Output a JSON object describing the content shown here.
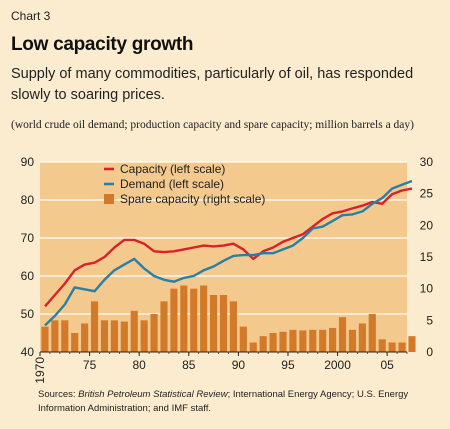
{
  "chart_label": "Chart 3",
  "title": "Low capacity growth",
  "subtitle": "Supply of many commodities, particularly of oil, has responded slowly to soaring prices.",
  "units": "(world crude oil demand; production capacity and spare capacity; million barrels a day)",
  "sources": {
    "lead": "Sources: ",
    "bp": "British Petroleum Statistical Review",
    "rest": "; International Energy Agency; U.S. Energy Information Administration; and IMF staff."
  },
  "colors": {
    "background": "#fbeccf",
    "plot_background": "#f3c98d",
    "capacity": "#d8222a",
    "demand": "#2a7fa6",
    "spare": "#d27a2a"
  },
  "chart_data": {
    "type": "bar+line",
    "x_tick_labels": [
      "1970",
      "75",
      "80",
      "85",
      "90",
      "95",
      "2000",
      "05"
    ],
    "x_ticks": [
      1970,
      1975,
      1980,
      1985,
      1990,
      1995,
      2000,
      2005
    ],
    "x_range": [
      1970,
      2007
    ],
    "y_left": {
      "range": [
        40,
        90
      ],
      "ticks": [
        40,
        50,
        60,
        70,
        80,
        90
      ]
    },
    "y_right": {
      "range": [
        0,
        30
      ],
      "ticks": [
        0,
        5,
        10,
        15,
        20,
        25,
        30
      ]
    },
    "legend_position": "top-left",
    "series": [
      {
        "name": "Capacity (left scale)",
        "kind": "line",
        "axis": "left",
        "color": "#d8222a",
        "x": [
          1970,
          1971,
          1972,
          1973,
          1974,
          1975,
          1976,
          1977,
          1978,
          1979,
          1980,
          1981,
          1982,
          1983,
          1984,
          1985,
          1986,
          1987,
          1988,
          1989,
          1990,
          1991,
          1992,
          1993,
          1994,
          1995,
          1996,
          1997,
          1998,
          1999,
          2000,
          2001,
          2002,
          2003,
          2004,
          2005,
          2006,
          2007
        ],
        "y": [
          52,
          55,
          58,
          61.5,
          63,
          63.5,
          65,
          67.5,
          69.5,
          69.5,
          68.5,
          66.5,
          66.3,
          66.5,
          67,
          67.5,
          68,
          67.8,
          68,
          68.5,
          67,
          64.5,
          66.5,
          67.5,
          69,
          70,
          71,
          73,
          75,
          76.5,
          77,
          77.8,
          78.5,
          79.5,
          79,
          81.5,
          82.5,
          83
        ]
      },
      {
        "name": "Demand (left scale)",
        "kind": "line",
        "axis": "left",
        "color": "#2a7fa6",
        "x": [
          1970,
          1971,
          1972,
          1973,
          1974,
          1975,
          1976,
          1977,
          1978,
          1979,
          1980,
          1981,
          1982,
          1983,
          1984,
          1985,
          1986,
          1987,
          1988,
          1989,
          1990,
          1991,
          1992,
          1993,
          1994,
          1995,
          1996,
          1997,
          1998,
          1999,
          2000,
          2001,
          2002,
          2003,
          2004,
          2005,
          2006,
          2007
        ],
        "y": [
          47,
          49.5,
          52.5,
          57,
          56.5,
          56,
          59,
          61.5,
          63,
          64.5,
          62,
          60,
          59,
          58.5,
          59.5,
          60,
          61.5,
          62.5,
          64,
          65.3,
          65.5,
          65.5,
          66,
          66,
          67,
          68,
          70,
          72.5,
          73,
          74.5,
          76,
          76.2,
          77,
          79,
          80.5,
          83,
          84,
          85
        ]
      },
      {
        "name": "Spare capacity (right scale)",
        "kind": "bar",
        "axis": "right",
        "color": "#d27a2a",
        "x": [
          1970,
          1971,
          1972,
          1973,
          1974,
          1975,
          1976,
          1977,
          1978,
          1979,
          1980,
          1981,
          1982,
          1983,
          1984,
          1985,
          1986,
          1987,
          1988,
          1989,
          1990,
          1991,
          1992,
          1993,
          1994,
          1995,
          1996,
          1997,
          1998,
          1999,
          2000,
          2001,
          2002,
          2003,
          2004,
          2005,
          2006,
          2007
        ],
        "y": [
          4,
          5,
          5,
          3,
          4.5,
          8,
          5,
          5,
          4.8,
          6.5,
          5,
          6,
          8,
          10,
          10.5,
          10,
          10.5,
          9,
          9,
          8,
          4,
          1.5,
          2.5,
          3,
          3.2,
          3.5,
          3.4,
          3.5,
          3.5,
          3.8,
          5.5,
          3.5,
          4.5,
          6,
          2,
          1.5,
          1.5,
          2.5
        ]
      }
    ]
  }
}
